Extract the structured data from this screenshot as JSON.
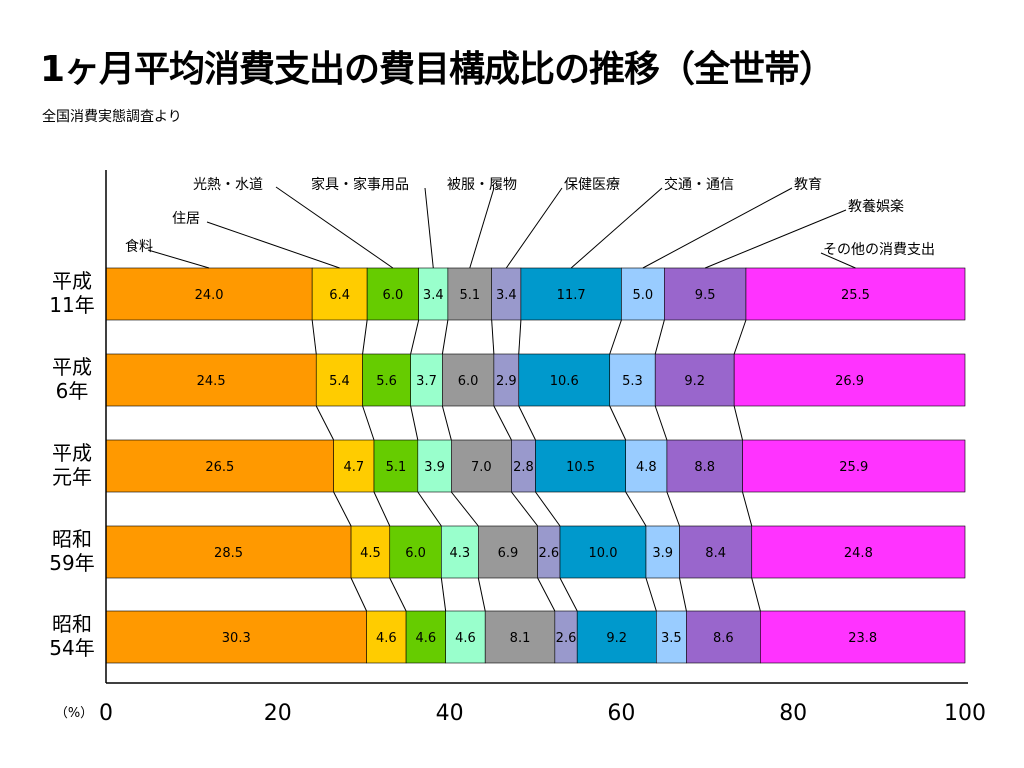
{
  "title": "1ヶ月平均消費支出の費目構成比の推移（全世帯）",
  "subtitle": "全国消費実態調査より",
  "chart_data": {
    "type": "bar",
    "orientation": "horizontal-stacked-100",
    "categories": [
      "平成\n11年",
      "平成\n6年",
      "平成\n元年",
      "昭和\n59年",
      "昭和\n54年"
    ],
    "xlim": [
      0,
      100
    ],
    "x_ticks": [
      "0",
      "20",
      "40",
      "60",
      "80",
      "100"
    ],
    "x_unit_label": "（%）",
    "series": [
      {
        "name": "食料",
        "color": "#ff9900",
        "values": [
          24.0,
          24.5,
          26.5,
          28.5,
          30.3
        ]
      },
      {
        "name": "住居",
        "color": "#ffcc00",
        "values": [
          6.4,
          5.4,
          4.7,
          4.5,
          4.6
        ]
      },
      {
        "name": "光熱・水道",
        "color": "#66cc00",
        "values": [
          6.0,
          5.6,
          5.1,
          6.0,
          4.6
        ]
      },
      {
        "name": "家具・家事用品",
        "color": "#99ffcc",
        "values": [
          3.4,
          3.7,
          3.9,
          4.3,
          4.6
        ]
      },
      {
        "name": "被服・履物",
        "color": "#999999",
        "values": [
          5.1,
          6.0,
          7.0,
          6.9,
          8.1
        ]
      },
      {
        "name": "保健医療",
        "color": "#9999cc",
        "values": [
          3.4,
          2.9,
          2.8,
          2.6,
          2.6
        ]
      },
      {
        "name": "交通・通信",
        "color": "#0099cc",
        "values": [
          11.7,
          10.6,
          10.5,
          10.0,
          9.2
        ]
      },
      {
        "name": "教育",
        "color": "#99ccff",
        "values": [
          5.0,
          5.3,
          4.8,
          3.9,
          3.5
        ]
      },
      {
        "name": "教養娯楽",
        "color": "#9966cc",
        "values": [
          9.5,
          9.2,
          8.8,
          8.4,
          8.6
        ]
      },
      {
        "name": "その他の消費支出",
        "color": "#ff33ff",
        "values": [
          25.5,
          26.9,
          25.9,
          24.8,
          23.8
        ]
      }
    ],
    "data_labels": [
      [
        "24.0",
        "6.4",
        "6.0",
        "3.4",
        "5.1",
        "3.4",
        "11.7",
        "5.0",
        "9.5",
        "25.5"
      ],
      [
        "24.5",
        "5.4",
        "5.6",
        "3.7",
        "6.0",
        "2.9",
        "10.6",
        "5.3",
        "9.2",
        "26.9"
      ],
      [
        "26.5",
        "4.7",
        "5.1",
        "3.9",
        "7.0",
        "2.8",
        "10.5",
        "4.8",
        "8.8",
        "25.9"
      ],
      [
        "28.5",
        "4.5",
        "6.0",
        "4.3",
        "6.9",
        "2.6",
        "10.0",
        "3.9",
        "8.4",
        "24.8"
      ],
      [
        "30.3",
        "4.6",
        "4.6",
        "4.6",
        "8.1",
        "2.6",
        "9.2",
        "3.5",
        "8.6",
        "23.8"
      ]
    ],
    "legend": "callouts above first bar",
    "grid": false
  }
}
